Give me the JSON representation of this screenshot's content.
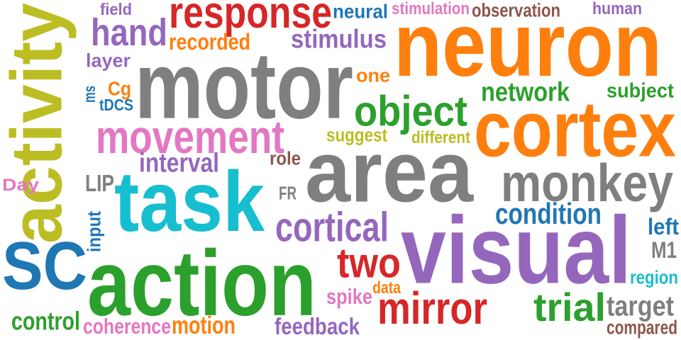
{
  "colors": {
    "blue": "#1f77b4",
    "orange": "#ff7f0e",
    "green": "#2ca02c",
    "red": "#d62728",
    "purple": "#9467bd",
    "brown": "#8c564b",
    "pink": "#e377c2",
    "gray": "#7f7f7f",
    "olive": "#bcbd22",
    "cyan": "#17becf"
  },
  "words": [
    {
      "text": "activity",
      "color": "olive"
    },
    {
      "text": "response",
      "color": "red"
    },
    {
      "text": "neuron",
      "color": "orange"
    },
    {
      "text": "motor",
      "color": "gray"
    },
    {
      "text": "hand",
      "color": "purple"
    },
    {
      "text": "field",
      "color": "purple"
    },
    {
      "text": "neural",
      "color": "blue"
    },
    {
      "text": "stimulation",
      "color": "pink"
    },
    {
      "text": "observation",
      "color": "brown"
    },
    {
      "text": "human",
      "color": "purple"
    },
    {
      "text": "recorded",
      "color": "orange"
    },
    {
      "text": "stimulus",
      "color": "purple"
    },
    {
      "text": "layer",
      "color": "purple"
    },
    {
      "text": "one",
      "color": "orange"
    },
    {
      "text": "ms",
      "color": "blue"
    },
    {
      "text": "Cg",
      "color": "orange"
    },
    {
      "text": "tDCS",
      "color": "blue"
    },
    {
      "text": "network",
      "color": "green"
    },
    {
      "text": "subject",
      "color": "green"
    },
    {
      "text": "object",
      "color": "green"
    },
    {
      "text": "cortex",
      "color": "orange"
    },
    {
      "text": "movement",
      "color": "pink"
    },
    {
      "text": "suggest",
      "color": "olive"
    },
    {
      "text": "different",
      "color": "olive"
    },
    {
      "text": "interval",
      "color": "purple"
    },
    {
      "text": "role",
      "color": "brown"
    },
    {
      "text": "area",
      "color": "gray"
    },
    {
      "text": "monkey",
      "color": "gray"
    },
    {
      "text": "Day",
      "color": "pink"
    },
    {
      "text": "LIP",
      "color": "gray"
    },
    {
      "text": "task",
      "color": "cyan"
    },
    {
      "text": "FR",
      "color": "gray"
    },
    {
      "text": "input",
      "color": "blue"
    },
    {
      "text": "condition",
      "color": "blue"
    },
    {
      "text": "cortical",
      "color": "purple"
    },
    {
      "text": "left",
      "color": "blue"
    },
    {
      "text": "visual",
      "color": "purple"
    },
    {
      "text": "SC",
      "color": "blue"
    },
    {
      "text": "action",
      "color": "green"
    },
    {
      "text": "two",
      "color": "red"
    },
    {
      "text": "M1",
      "color": "gray"
    },
    {
      "text": "region",
      "color": "cyan"
    },
    {
      "text": "spike",
      "color": "pink"
    },
    {
      "text": "data",
      "color": "orange"
    },
    {
      "text": "mirror",
      "color": "red"
    },
    {
      "text": "trial",
      "color": "green"
    },
    {
      "text": "target",
      "color": "gray"
    },
    {
      "text": "control",
      "color": "green"
    },
    {
      "text": "coherence",
      "color": "pink"
    },
    {
      "text": "motion",
      "color": "orange"
    },
    {
      "text": "feedback",
      "color": "purple"
    },
    {
      "text": "compared",
      "color": "brown"
    }
  ]
}
